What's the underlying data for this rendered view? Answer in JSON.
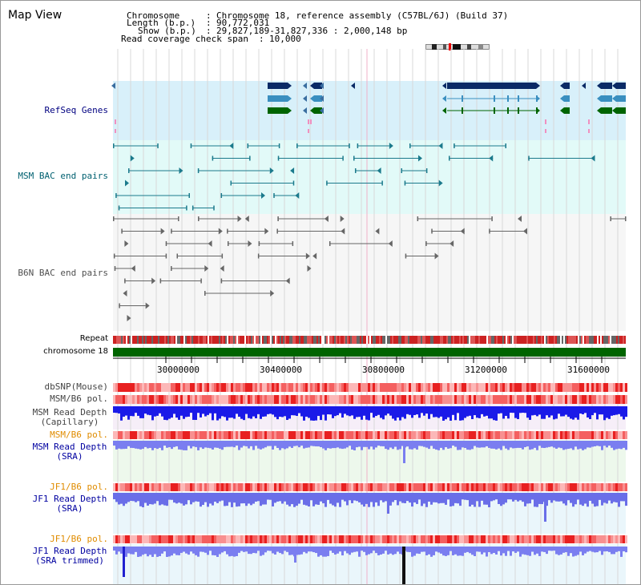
{
  "title": "Map View",
  "info": {
    "chromosome_label": "Chromosome",
    "chromosome_value": "Chromosome 18, reference assembly (C57BL/6J) (Build 37)",
    "length_label": "Length (b.p.)",
    "length_value": "90,772,031",
    "show_label": "Show (b.p.)",
    "show_value": "29,827,189-31,827,336 : 2,000,148 bp",
    "coverage_label": "Read coverage check span",
    "coverage_value": "10,000"
  },
  "tracks": {
    "refseq": "RefSeq Genes",
    "msm_bac": "MSM BAC end pairs",
    "b6n_bac": "B6N BAC end pairs",
    "repeat": "Repeat",
    "chromosome": "chromosome 18",
    "dbsnp": "dbSNP(Mouse)",
    "msm_pol": "MSM/B6 pol.",
    "msm_depth_cap_1": "MSM Read Depth",
    "msm_depth_cap_2": "(Capillary)",
    "msm_pol2": "MSM/B6 pol.",
    "msm_depth_sra_1": "MSM Read Depth",
    "msm_depth_sra_2": "(SRA)",
    "jf1_pol": "JF1/B6 pol.",
    "jf1_depth_sra_1": "JF1 Read Depth",
    "jf1_depth_sra_2": "(SRA)",
    "jf1_pol2": "JF1/B6 pol.",
    "jf1_depth_trim_1": "JF1 Read Depth",
    "jf1_depth_trim_2": "(SRA trimmed)"
  },
  "axis": {
    "ticks": [
      "30000000",
      "30400000",
      "30800000",
      "31200000",
      "31600000"
    ]
  },
  "colors": {
    "refseq_label": "#000080",
    "msm_bac_label": "#006070",
    "b6n_bac_label": "#505050",
    "pol_label_orange": "#e08c00",
    "depth_label_blue": "#0000a0",
    "chromosome_bar": "#006400"
  }
}
